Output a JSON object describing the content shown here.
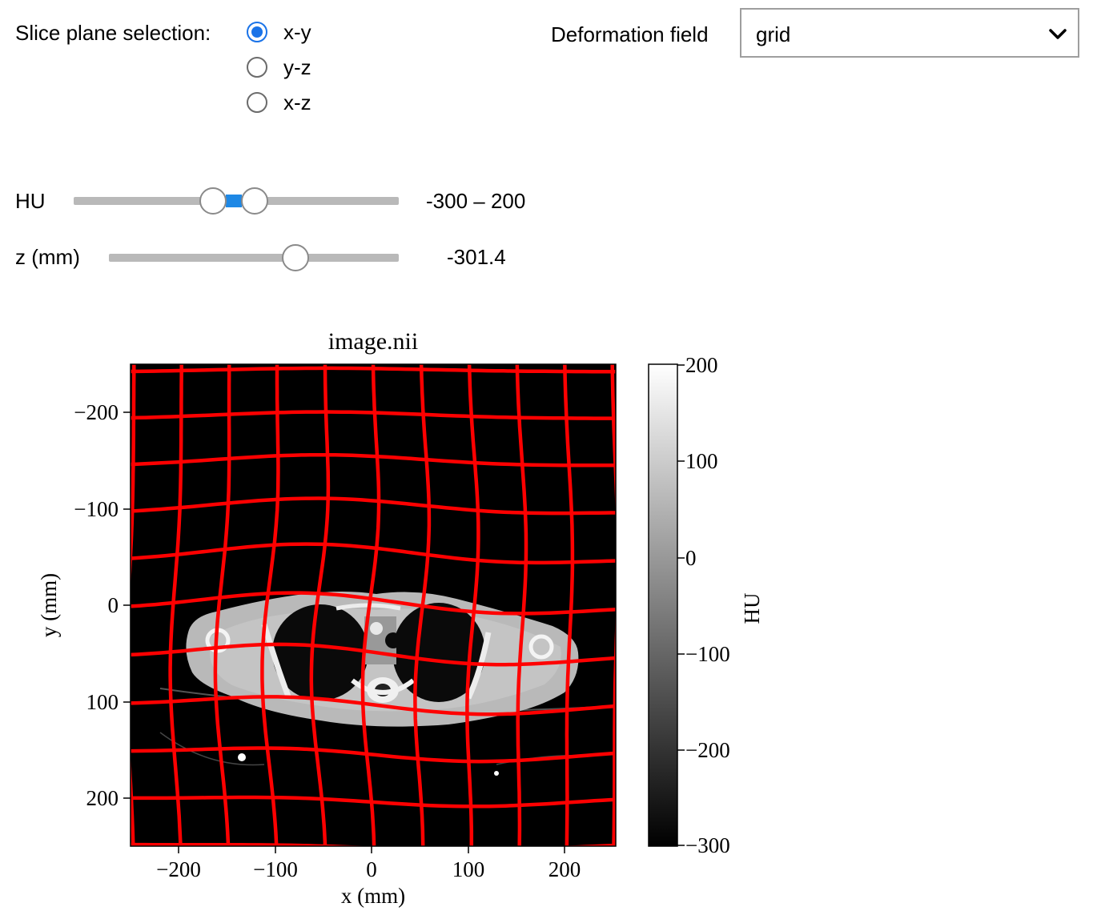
{
  "controls": {
    "slice_plane_label": "Slice plane selection:",
    "radio_options": [
      "x-y",
      "y-z",
      "x-z"
    ],
    "selected_radio": "x-y",
    "deformation_label": "Deformation field",
    "deformation_value": "grid",
    "hu_label": "HU",
    "hu_value_text": "-300 – 200",
    "hu_range": [
      -300,
      200
    ],
    "z_label": "z (mm)",
    "z_value_text": "-301.4",
    "z_fraction": 0.64
  },
  "plot": {
    "title": "image.nii",
    "xlabel": "x (mm)",
    "ylabel": "y (mm)",
    "xticks": [
      "−200",
      "−100",
      "0",
      "100",
      "200"
    ],
    "yticks": [
      "−200",
      "−100",
      "0",
      "100",
      "200"
    ],
    "colorbar_label": "HU",
    "colorbar_ticks": [
      "200",
      "100",
      "0",
      "−100",
      "−200",
      "−300"
    ],
    "grid_color": "#ff0000",
    "accent_color": "#1a73e8"
  }
}
